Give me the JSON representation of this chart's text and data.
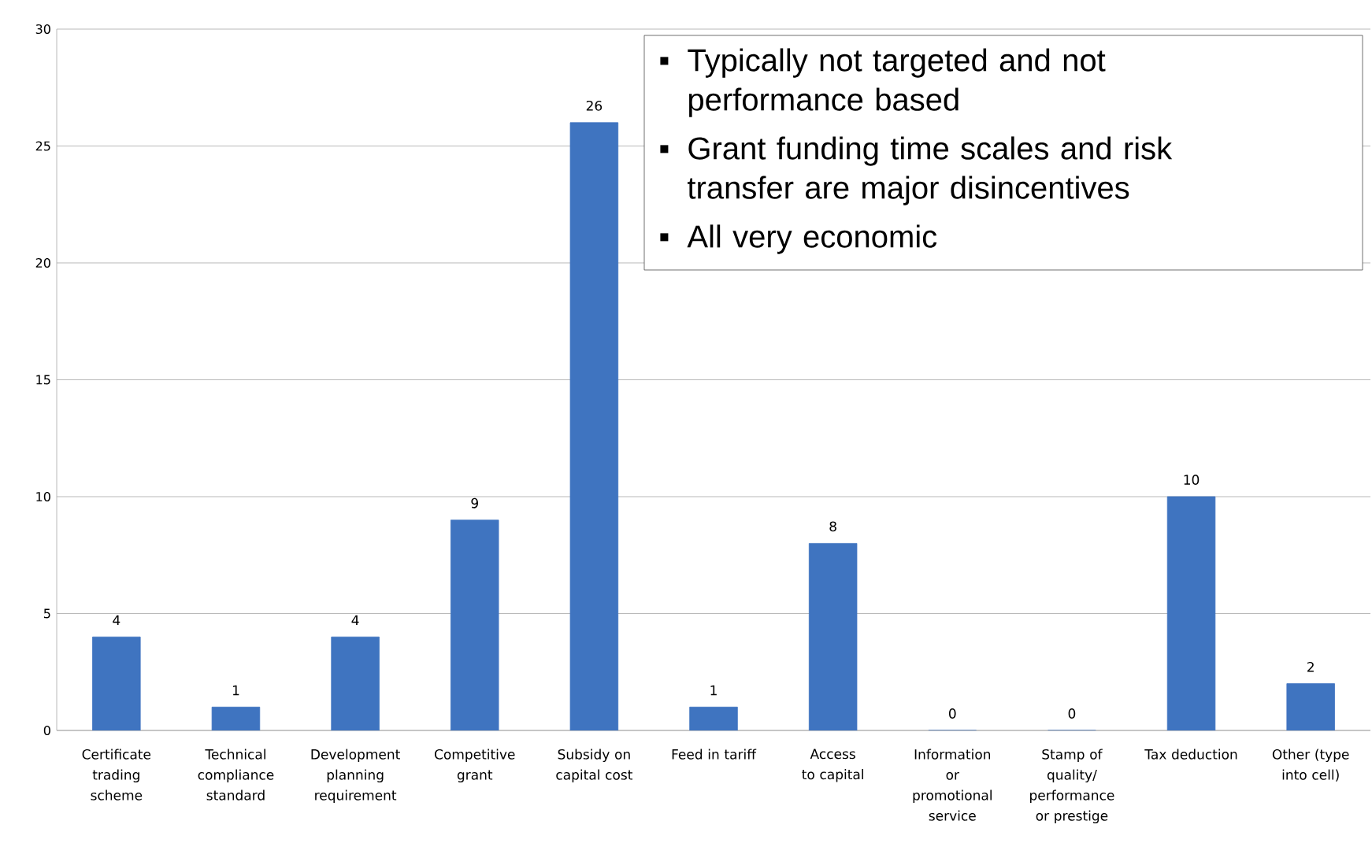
{
  "chart_data": {
    "type": "bar",
    "categories": [
      "Certificate trading scheme",
      "Technical compliance standard",
      "Development planning requirement",
      "Competitive grant",
      "Subsidy on capital cost",
      "Feed in tariff",
      "Access to capital",
      "Information or promotional service",
      "Stamp of quality/ performance or prestige",
      "Tax deduction",
      "Other (type into cell)"
    ],
    "values": [
      4,
      1,
      4,
      9,
      26,
      1,
      8,
      0,
      0,
      10,
      2
    ],
    "color": "#3f74c0",
    "ylim": [
      0,
      30
    ],
    "yticks": [
      0,
      5,
      10,
      15,
      20,
      25,
      30
    ],
    "grid": "y",
    "data_labels": true,
    "annotations": [
      "Typically not targeted and not performance based",
      "Grant funding time scales and risk transfer are major disincentives",
      "All very economic"
    ]
  }
}
